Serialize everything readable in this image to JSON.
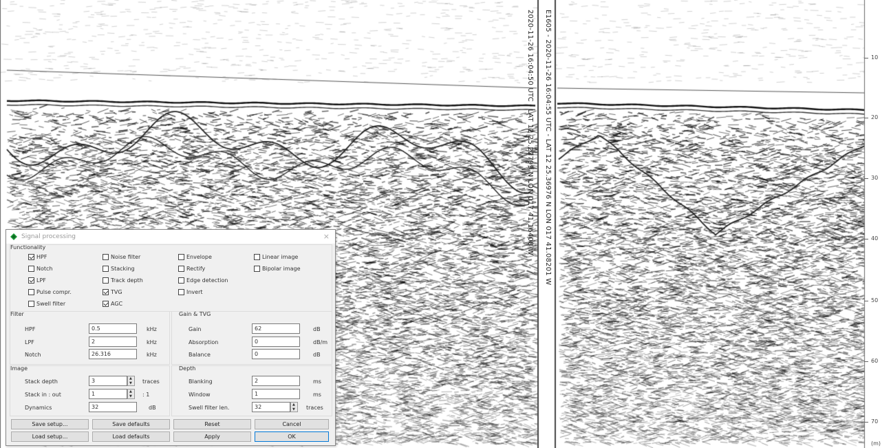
{
  "trace_annotations": {
    "left": "2020-11-26 16:04:50 UTC - LAT 12 25.22799 N LON 017 41.16408 W",
    "right": "E1605 - 2020-11-26 16:04:55 UTC - LAT 12 25.36976 N LON 017 41.08201 W"
  },
  "depth_scale": {
    "ticks": [
      "10",
      "20",
      "30",
      "40",
      "50",
      "60",
      "70"
    ],
    "bottom_label": "(m)"
  },
  "dialog": {
    "title": "Signal processing",
    "close_label": "×",
    "functionality": {
      "title": "Functionality",
      "columns": [
        [
          {
            "label": "HPF",
            "checked": true
          },
          {
            "label": "Notch",
            "checked": false
          },
          {
            "label": "LPF",
            "checked": true
          },
          {
            "label": "Pulse compr.",
            "checked": false
          },
          {
            "label": "Swell filter",
            "checked": false
          }
        ],
        [
          {
            "label": "Noise filter",
            "checked": false
          },
          {
            "label": "Stacking",
            "checked": false
          },
          {
            "label": "Track depth",
            "checked": false
          },
          {
            "label": "TVG",
            "checked": true
          },
          {
            "label": "AGC",
            "checked": true
          }
        ],
        [
          {
            "label": "Envelope",
            "checked": false
          },
          {
            "label": "Rectify",
            "checked": false
          },
          {
            "label": "Edge detection",
            "checked": false
          },
          {
            "label": "Invert",
            "checked": false
          }
        ],
        [
          {
            "label": "Linear image",
            "checked": false
          },
          {
            "label": "Bipolar image",
            "checked": false
          }
        ]
      ]
    },
    "filter": {
      "title": "Filter",
      "rows": [
        {
          "label": "HPF",
          "value": "0.5",
          "unit": "kHz"
        },
        {
          "label": "LPF",
          "value": "2",
          "unit": "kHz"
        },
        {
          "label": "Notch",
          "value": "26.316",
          "unit": "kHz"
        }
      ]
    },
    "gain": {
      "title": "Gain & TVG",
      "rows": [
        {
          "label": "Gain",
          "value": "62",
          "unit": "dB"
        },
        {
          "label": "Absorption",
          "value": "0",
          "unit": "dB/m"
        },
        {
          "label": "Balance",
          "value": "0",
          "unit": "dB"
        }
      ]
    },
    "image": {
      "title": "Image",
      "rows": [
        {
          "label": "Stack depth",
          "value": "3",
          "unit": "traces",
          "spinner": true
        },
        {
          "label": "Stack in : out",
          "value": "1",
          "unit": ": 1",
          "spinner": true
        },
        {
          "label": "Dynamics",
          "value": "32",
          "unit": "dB",
          "spinner": false
        }
      ]
    },
    "depth": {
      "title": "Depth",
      "rows": [
        {
          "label": "Blanking",
          "value": "2",
          "unit": "ms",
          "spinner": false
        },
        {
          "label": "Window",
          "value": "1",
          "unit": "ms",
          "spinner": false
        },
        {
          "label": "Swell filter len.",
          "value": "32",
          "unit": "traces",
          "spinner": true
        }
      ]
    },
    "buttons": {
      "save_setup": "Save setup...",
      "save_defaults": "Save defaults",
      "reset": "Reset",
      "cancel": "Cancel",
      "load_setup": "Load setup...",
      "load_defaults": "Load defaults",
      "apply": "Apply",
      "ok": "OK"
    }
  }
}
